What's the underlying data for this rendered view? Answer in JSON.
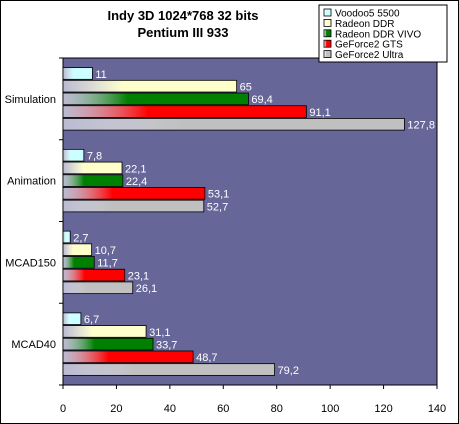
{
  "chart_data": {
    "type": "bar",
    "orientation": "horizontal",
    "title": [
      "Indy 3D 1024*768 32 bits",
      "Pentium III 933"
    ],
    "categories": [
      "Simulation",
      "Animation",
      "MCAD150",
      "MCAD40"
    ],
    "series": [
      {
        "name": "Voodoo5 5500",
        "color": "#ccffff",
        "values": [
          11,
          7.8,
          2.7,
          6.7
        ],
        "labels": [
          "11",
          "7,8",
          "2,7",
          "6,7"
        ]
      },
      {
        "name": "Radeon DDR",
        "color": "#ffffcc",
        "values": [
          65,
          22.1,
          10.7,
          31.1
        ],
        "labels": [
          "65",
          "22,1",
          "10,7",
          "31,1"
        ]
      },
      {
        "name": "Radeon DDR VIVO",
        "color": "#008000",
        "values": [
          69.4,
          22.4,
          11.7,
          33.7
        ],
        "labels": [
          "69,4",
          "22,4",
          "11,7",
          "33,7"
        ]
      },
      {
        "name": "GeForce2 GTS",
        "color": "#ff0000",
        "values": [
          91.1,
          53.1,
          23.1,
          48.7
        ],
        "labels": [
          "91,1",
          "53,1",
          "23,1",
          "48,7"
        ]
      },
      {
        "name": "GeForce2 Ultra",
        "color": "#c0c0c0",
        "values": [
          127.8,
          52.7,
          26.1,
          79.2
        ],
        "labels": [
          "127,8",
          "52,7",
          "26,1",
          "79,2"
        ]
      }
    ],
    "xlim": [
      0,
      140
    ],
    "xticks": [
      0,
      20,
      40,
      60,
      80,
      100,
      120,
      140
    ],
    "plot_background": "#666699",
    "legend_position": "top-right"
  }
}
